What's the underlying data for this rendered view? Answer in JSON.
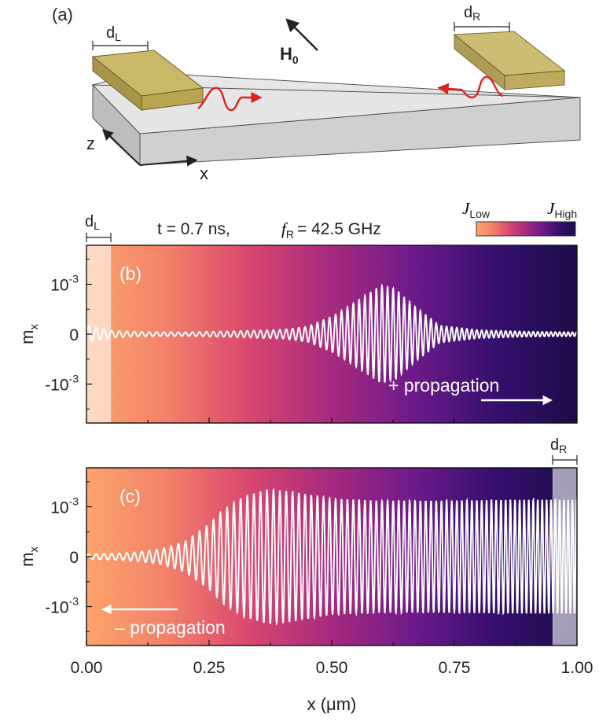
{
  "schematic": {
    "panel_label": "(a)",
    "d_left": "d",
    "d_left_sub": "L",
    "d_right": "d",
    "d_right_sub": "R",
    "field_label": "H",
    "field_sub": "0",
    "axis_z": "z",
    "axis_x": "x"
  },
  "info": {
    "time_text": "t = 0.7 ns,",
    "freq_symbol": "f",
    "freq_sub": "R",
    "freq_value": "= 42.5 GHz",
    "colorbar_low": "J",
    "colorbar_low_sub": "Low",
    "colorbar_high": "J",
    "colorbar_high_sub": "High",
    "dL_label": "d",
    "dL_sub": "L",
    "dR_label": "d",
    "dR_sub": "R"
  },
  "colors": {
    "gradient": [
      "#fca46a",
      "#f2806a",
      "#d9466f",
      "#a52a7f",
      "#6d1a8a",
      "#350f6e",
      "#1c0c48"
    ],
    "trace": "#ffffff",
    "arrow_red": "#e02020",
    "gold": "#b8a451"
  },
  "chart_data": [
    {
      "type": "line",
      "panel_label": "(b)",
      "annotation": "+ propagation",
      "xlabel": "x (μm)",
      "ylabel": "m",
      "ylabel_sub": "x",
      "yticks": [
        {
          "value": 0.001,
          "base": "10",
          "exp": "-3"
        },
        {
          "value": 0,
          "base": "0",
          "exp": ""
        },
        {
          "value": -0.001,
          "base": "-10",
          "exp": "-3"
        }
      ],
      "xlim": [
        0,
        1
      ],
      "ylim": [
        -0.00178,
        0.00178
      ],
      "antenna_region": [
        0,
        0.05
      ],
      "series": [
        {
          "envelope_x": [
            0,
            0.01,
            0.05,
            0.1,
            0.2,
            0.3,
            0.4,
            0.45,
            0.5,
            0.55,
            0.6,
            0.63,
            0.67,
            0.72,
            0.8,
            0.9,
            1.0
          ],
          "envelope_amp": [
            0.00017,
            0.00015,
            7e-05,
            5e-05,
            4e-05,
            6e-05,
            9e-05,
            0.00015,
            0.00035,
            0.00065,
            0.00098,
            0.0009,
            0.00055,
            0.00017,
            8e-05,
            5e-05,
            4e-05
          ],
          "wavelength_start": 0.016,
          "wavelength_end": 0.0085
        }
      ]
    },
    {
      "type": "line",
      "panel_label": "(c)",
      "annotation": "– propagation",
      "xlabel": "x (μm)",
      "ylabel": "m",
      "ylabel_sub": "x",
      "yticks": [
        {
          "value": 0.001,
          "base": "10",
          "exp": "-3"
        },
        {
          "value": 0,
          "base": "0",
          "exp": ""
        },
        {
          "value": -0.001,
          "base": "-10",
          "exp": "-3"
        }
      ],
      "xticks": [
        "0.00",
        "0.25",
        "0.50",
        "0.75",
        "1.00"
      ],
      "xtick_values": [
        0,
        0.25,
        0.5,
        0.75,
        1.0
      ],
      "xlim": [
        0,
        1
      ],
      "ylim": [
        -0.00178,
        0.00178
      ],
      "antenna_region": [
        0.95,
        1.0
      ],
      "series": [
        {
          "envelope_x": [
            0,
            0.05,
            0.1,
            0.15,
            0.2,
            0.25,
            0.28,
            0.32,
            0.37,
            0.42,
            0.5,
            0.6,
            0.7,
            0.8,
            0.9,
            1.0
          ],
          "envelope_amp": [
            5e-05,
            6e-05,
            9e-05,
            0.00015,
            0.0003,
            0.00065,
            0.00095,
            0.0012,
            0.00135,
            0.0013,
            0.00116,
            0.00112,
            0.00112,
            0.00113,
            0.00114,
            0.00114
          ],
          "wavelength_start": 0.016,
          "wavelength_end": 0.0085
        }
      ]
    }
  ]
}
